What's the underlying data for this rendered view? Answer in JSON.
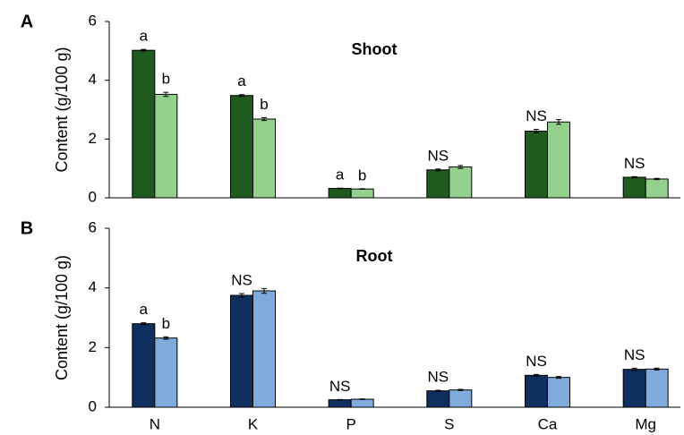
{
  "chart_data": [
    {
      "type": "bar",
      "panel_label": "A",
      "title": "Shoot",
      "y_label": "Content  (g/100 g)",
      "categories": [
        null,
        null,
        null,
        null,
        null,
        null
      ],
      "ylim": [
        0,
        6
      ],
      "yticks": [
        0,
        2,
        4,
        6
      ],
      "series": [
        {
          "color": "#1f5a1f",
          "values": [
            5.02,
            3.48,
            0.32,
            0.95,
            2.27,
            0.7
          ],
          "errors": [
            0.03,
            0.03,
            0.01,
            0.03,
            0.06,
            0.02
          ],
          "labels": [
            "a",
            "a",
            "a",
            "NS",
            "NS",
            "NS"
          ]
        },
        {
          "color": "#93d08d",
          "values": [
            3.52,
            2.68,
            0.3,
            1.05,
            2.58,
            0.64
          ],
          "errors": [
            0.07,
            0.05,
            0.01,
            0.05,
            0.08,
            0.02
          ],
          "labels": [
            "b",
            "b",
            "b",
            null,
            null,
            null
          ]
        }
      ]
    },
    {
      "type": "bar",
      "panel_label": "B",
      "title": "Root",
      "y_label": "Content  (g/100 g)",
      "categories": [
        "N",
        "K",
        "P",
        "S",
        "Ca",
        "Mg"
      ],
      "ylim": [
        0,
        6
      ],
      "yticks": [
        0,
        2,
        4,
        6
      ],
      "series": [
        {
          "color": "#0f2f5e",
          "values": [
            2.8,
            3.75,
            0.25,
            0.55,
            1.07,
            1.27
          ],
          "errors": [
            0.03,
            0.06,
            0.01,
            0.02,
            0.03,
            0.04
          ],
          "labels": [
            "a",
            "NS",
            "NS",
            "NS",
            "NS",
            "NS"
          ]
        },
        {
          "color": "#7eaadc",
          "values": [
            2.32,
            3.9,
            0.27,
            0.58,
            1.0,
            1.28
          ],
          "errors": [
            0.04,
            0.08,
            0.01,
            0.02,
            0.03,
            0.03
          ],
          "labels": [
            "b",
            null,
            null,
            null,
            null,
            null
          ]
        }
      ]
    }
  ]
}
